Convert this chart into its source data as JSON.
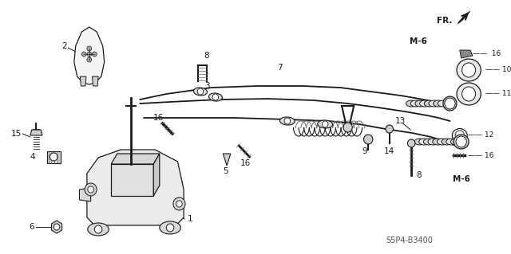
{
  "bg_color": "#ffffff",
  "dark": "#1a1a1a",
  "mid": "#666666",
  "light": "#cccccc",
  "diagram_code": "S5P4-B3400",
  "figsize": [
    6.4,
    3.19
  ],
  "dpi": 100
}
